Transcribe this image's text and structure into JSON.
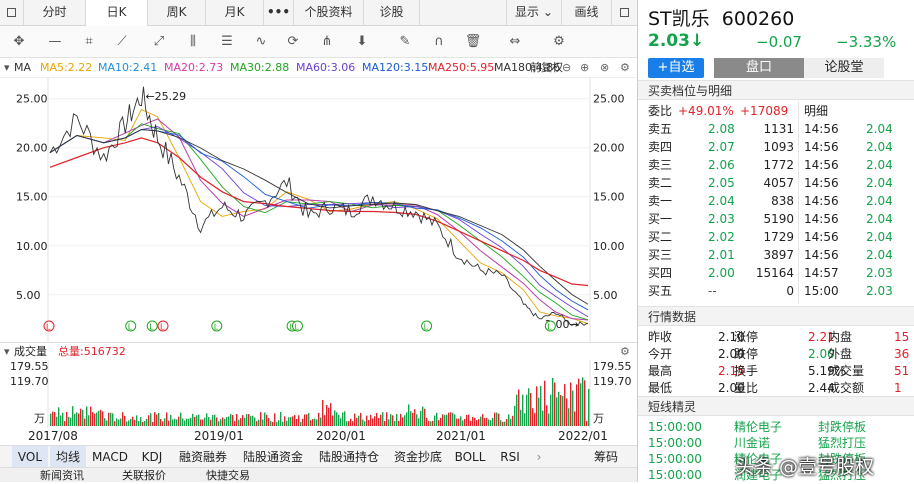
{
  "tabs": [
    "分时",
    "日K",
    "周K",
    "月K",
    "•••",
    "个股资料",
    "诊股"
  ],
  "top_right": {
    "display": "显示",
    "draw": "画线"
  },
  "ma_legend": {
    "label": "MA",
    "items": [
      {
        "text": "MA5:2.22",
        "color": "#e9a400"
      },
      {
        "text": "MA10:2.41",
        "color": "#1f8fe0"
      },
      {
        "text": "MA20:2.73",
        "color": "#d63aa8"
      },
      {
        "text": "MA30:2.88",
        "color": "#21a621"
      },
      {
        "text": "MA60:3.06",
        "color": "#6a3fd6"
      },
      {
        "text": "MA120:3.15",
        "color": "#1a5ad6"
      },
      {
        "text": "MA250:5.95",
        "color": "#e0222a"
      },
      {
        "text": "MA180:4.86",
        "color": "#333333"
      }
    ],
    "restore": "前复权"
  },
  "chart_data": {
    "type": "line",
    "title": "ST凯乐 600260 日K",
    "y_ticks": [
      "25.00",
      "20.00",
      "15.00",
      "10.00",
      "5.00"
    ],
    "ylim": [
      1.0,
      26.5
    ],
    "x_ticks": [
      "2017/08",
      "2019/01",
      "2020/01",
      "2021/01",
      "2022/01"
    ],
    "annotations": {
      "high": "←25.29",
      "low": "2.00→"
    },
    "price_x": [
      0,
      0.05,
      0.1,
      0.14,
      0.17,
      0.2,
      0.24,
      0.28,
      0.32,
      0.36,
      0.4,
      0.44,
      0.48,
      0.52,
      0.56,
      0.6,
      0.64,
      0.68,
      0.72,
      0.76,
      0.8,
      0.84,
      0.88,
      0.91,
      0.94,
      0.97,
      1.0
    ],
    "price_y": [
      19.5,
      23.0,
      19.0,
      22.5,
      25.29,
      21.0,
      17.0,
      12.0,
      14.0,
      13.0,
      14.5,
      16.5,
      13.0,
      14.0,
      13.5,
      15.0,
      14.0,
      13.5,
      12.0,
      9.0,
      7.5,
      7.0,
      4.0,
      2.5,
      3.2,
      2.0,
      2.1
    ],
    "ma250_y": [
      18.0,
      19.0,
      20.0,
      20.5,
      21.0,
      20.5,
      19.0,
      17.0,
      15.5,
      14.5,
      14.3,
      14.0,
      13.8,
      13.6,
      13.5,
      13.5,
      13.4,
      13.2,
      12.5,
      11.5,
      10.5,
      9.5,
      8.5,
      7.5,
      6.8,
      6.1,
      5.95
    ],
    "volume": {
      "label": "成交量",
      "total_label": "总量:516732",
      "ticks": [
        "179.55",
        "119.70",
        "万"
      ]
    }
  },
  "indicators": [
    "VOL",
    "均线",
    "MACD",
    "KDJ",
    "融资融券",
    "陆股通资金",
    "陆股通持仓",
    "资金抄底",
    "BOLL",
    "RSI",
    "筹码"
  ],
  "bottom_tabs": [
    "新闻资讯",
    "关联报价",
    "快捷交易"
  ],
  "stock": {
    "name": "ST凯乐",
    "code": "600260",
    "price": "2.03",
    "arrow": "↓",
    "change": "−0.07",
    "change_pct": "−3.33%"
  },
  "buttons": {
    "add": "+自选",
    "pankou": "盘口",
    "forum": "论股堂"
  },
  "orderbook": {
    "title": "买卖档位与明细",
    "weibi_label": "委比",
    "weibi_pct": "+49.01%",
    "weibi_diff": "+17089",
    "detail_label": "明细",
    "levels": [
      {
        "label": "卖五",
        "price": "2.08",
        "vol": "1131"
      },
      {
        "label": "卖四",
        "price": "2.07",
        "vol": "1093"
      },
      {
        "label": "卖三",
        "price": "2.06",
        "vol": "1772"
      },
      {
        "label": "卖二",
        "price": "2.05",
        "vol": "4057"
      },
      {
        "label": "卖一",
        "price": "2.04",
        "vol": "838"
      },
      {
        "label": "买一",
        "price": "2.03",
        "vol": "5190"
      },
      {
        "label": "买二",
        "price": "2.02",
        "vol": "1729"
      },
      {
        "label": "买三",
        "price": "2.01",
        "vol": "3897"
      },
      {
        "label": "买四",
        "price": "2.00",
        "vol": "15164"
      },
      {
        "label": "买五",
        "price": "--",
        "vol": "0"
      }
    ],
    "ticks": [
      {
        "time": "14:56",
        "price": "2.04"
      },
      {
        "time": "14:56",
        "price": "2.04"
      },
      {
        "time": "14:56",
        "price": "2.04"
      },
      {
        "time": "14:56",
        "price": "2.04"
      },
      {
        "time": "14:56",
        "price": "2.04"
      },
      {
        "time": "14:56",
        "price": "2.04"
      },
      {
        "time": "14:56",
        "price": "2.04"
      },
      {
        "time": "14:56",
        "price": "2.04"
      },
      {
        "time": "14:57",
        "price": "2.03"
      },
      {
        "time": "15:00",
        "price": "2.03"
      }
    ]
  },
  "market": {
    "title": "行情数据",
    "rows": [
      [
        {
          "k": "昨收",
          "v": "2.10"
        },
        {
          "k": "涨停",
          "v": "2.21"
        },
        {
          "k": "内盘",
          "v": "15"
        }
      ],
      [
        {
          "k": "今开",
          "v": "2.00"
        },
        {
          "k": "跌停",
          "v": "2.00"
        },
        {
          "k": "外盘",
          "v": "36"
        }
      ],
      [
        {
          "k": "最高",
          "v": "2.15"
        },
        {
          "k": "换手",
          "v": "5.19%"
        },
        {
          "k": "成交量",
          "v": "51"
        }
      ],
      [
        {
          "k": "最低",
          "v": "2.00"
        },
        {
          "k": "量比",
          "v": "2.44"
        },
        {
          "k": "成交额",
          "v": "1"
        }
      ]
    ]
  },
  "shortline": {
    "title": "短线精灵",
    "items": [
      {
        "time": "15:00:00",
        "name": "精伦电子",
        "event": "封跌停板"
      },
      {
        "time": "15:00:00",
        "name": "川金诺",
        "event": "猛烈打压"
      },
      {
        "time": "15:00:00",
        "name": "精伦电子",
        "event": "封跌停板"
      },
      {
        "time": "15:00:00",
        "name": "润建电子",
        "event": "猛烈打压"
      }
    ]
  },
  "watermark": "头条 @壹号股权"
}
